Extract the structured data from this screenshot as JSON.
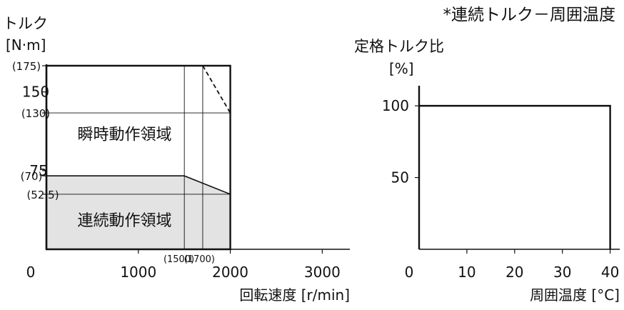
{
  "header": {
    "title": "*連続トルク－周囲温度"
  },
  "chart_data": [
    {
      "type": "area",
      "ylabel": "トルク",
      "yunit": "[N·m]",
      "xlabel": "回転速度 [r/min]",
      "xlim": [
        0,
        3300
      ],
      "ylim": [
        0,
        175
      ],
      "x_ticks": [
        {
          "value": 0,
          "label": "0"
        },
        {
          "value": 1000,
          "label": "1000"
        },
        {
          "value": 2000,
          "label": "2000"
        },
        {
          "value": 3000,
          "label": "3000"
        }
      ],
      "x_ref_ticks": [
        {
          "value": 1500,
          "label": "(1500)"
        },
        {
          "value": 1700,
          "label": "(1700)"
        }
      ],
      "y_ticks": [
        {
          "value": 175,
          "label": "(175)"
        },
        {
          "value": 150,
          "label": "150"
        },
        {
          "value": 130,
          "label": "(130)"
        },
        {
          "value": 75,
          "label": "75"
        },
        {
          "value": 70,
          "label": "(70)"
        },
        {
          "value": 52.5,
          "label": "(52.5)"
        }
      ],
      "regions": [
        {
          "name": "瞬時動作領域",
          "points": [
            [
              0,
              175
            ],
            [
              2000,
              175
            ],
            [
              2000,
              0
            ],
            [
              0,
              0
            ]
          ],
          "label_at": [
            850,
            110
          ]
        },
        {
          "name": "連続動作領域",
          "points": [
            [
              0,
              0
            ],
            [
              0,
              70
            ],
            [
              1500,
              70
            ],
            [
              2000,
              52.5
            ],
            [
              2000,
              0
            ]
          ],
          "label_at": [
            850,
            28
          ]
        }
      ],
      "dashed_line": [
        [
          1700,
          175
        ],
        [
          2000,
          130
        ]
      ],
      "colors": {
        "continuous_fill": "#e3e3e3",
        "line": "#111111"
      }
    },
    {
      "type": "line",
      "ylabel": "定格トルク比",
      "yunit": "[%]",
      "xlabel": "周囲温度 [°C]",
      "xlim": [
        0,
        42
      ],
      "ylim": [
        0,
        115
      ],
      "x_ticks": [
        {
          "value": 0,
          "label": "0"
        },
        {
          "value": 10,
          "label": "10"
        },
        {
          "value": 20,
          "label": "20"
        },
        {
          "value": 30,
          "label": "30"
        },
        {
          "value": 40,
          "label": "40"
        }
      ],
      "y_ticks": [
        {
          "value": 100,
          "label": "100"
        },
        {
          "value": 50,
          "label": "50"
        }
      ],
      "series": [
        {
          "x": [
            0,
            40,
            40
          ],
          "y": [
            100,
            100,
            0
          ]
        }
      ]
    }
  ]
}
